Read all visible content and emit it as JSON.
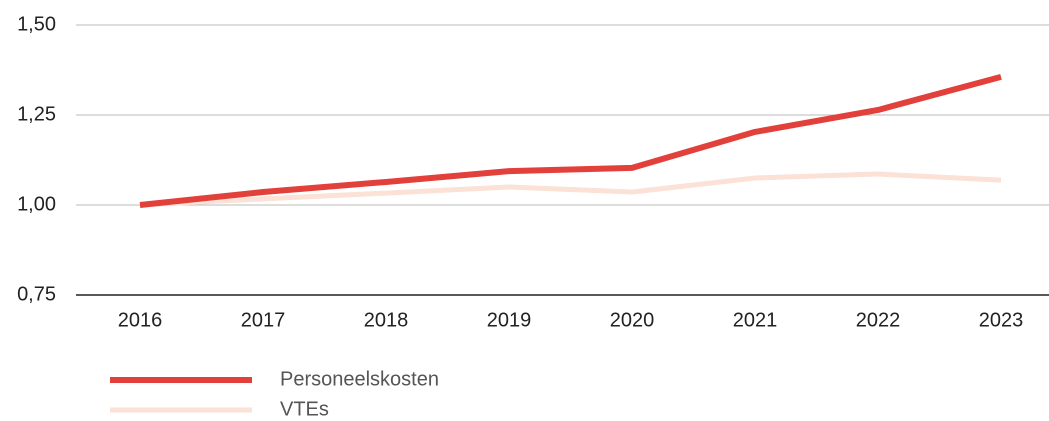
{
  "chart_data": {
    "type": "line",
    "categories": [
      "2016",
      "2017",
      "2018",
      "2019",
      "2020",
      "2021",
      "2022",
      "2023"
    ],
    "series": [
      {
        "name": "Personeelskosten",
        "color": "#e2403a",
        "values": [
          1.0,
          1.036,
          1.064,
          1.094,
          1.103,
          1.203,
          1.264,
          1.356
        ]
      },
      {
        "name": "VTEs",
        "color": "#fbe1d6",
        "values": [
          1.0,
          1.017,
          1.033,
          1.05,
          1.036,
          1.075,
          1.086,
          1.069
        ]
      }
    ],
    "ylim": [
      0.75,
      1.5
    ],
    "yticks": [
      {
        "value": 0.75,
        "label": "0,75"
      },
      {
        "value": 1.0,
        "label": "1,00"
      },
      {
        "value": 1.25,
        "label": "1,25"
      },
      {
        "value": 1.5,
        "label": "1,50"
      }
    ],
    "grid": true
  }
}
